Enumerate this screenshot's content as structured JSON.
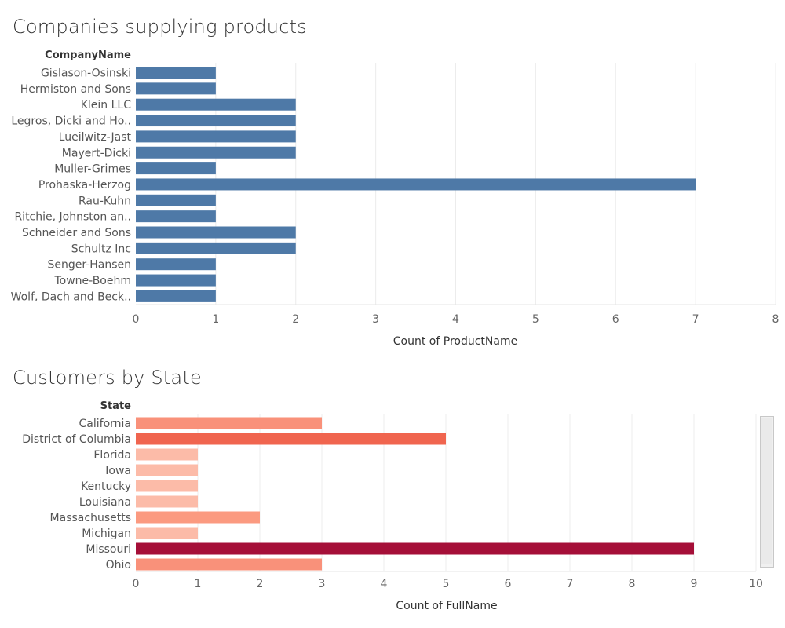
{
  "chart_data": [
    {
      "type": "bar",
      "orientation": "horizontal",
      "title": "Companies supplying products",
      "category_header": "CompanyName",
      "xlabel": "Count of ProductName",
      "xlim": [
        0,
        8
      ],
      "xticks": [
        0,
        1,
        2,
        3,
        4,
        5,
        6,
        7,
        8
      ],
      "categories": [
        "Gislason-Osinski",
        "Hermiston and Sons",
        "Klein LLC",
        "Legros, Dicki and Ho..",
        "Lueilwitz-Jast",
        "Mayert-Dicki",
        "Muller-Grimes",
        "Prohaska-Herzog",
        "Rau-Kuhn",
        "Ritchie, Johnston an..",
        "Schneider and Sons",
        "Schultz Inc",
        "Senger-Hansen",
        "Towne-Boehm",
        "Wolf, Dach and Beck.."
      ],
      "values": [
        1,
        1,
        2,
        2,
        2,
        2,
        1,
        7,
        1,
        1,
        2,
        2,
        1,
        1,
        1
      ],
      "bar_color": "#4e79a7",
      "grid": "vertical"
    },
    {
      "type": "bar",
      "orientation": "horizontal",
      "title": "Customers by State",
      "category_header": "State",
      "xlabel": "Count of FullName",
      "xlim": [
        0,
        10
      ],
      "xticks": [
        0,
        1,
        2,
        3,
        4,
        5,
        6,
        7,
        8,
        9,
        10
      ],
      "categories": [
        "California",
        "District of Columbia",
        "Florida",
        "Iowa",
        "Kentucky",
        "Louisiana",
        "Massachusetts",
        "Michigan",
        "Missouri",
        "Ohio"
      ],
      "values": [
        3,
        5,
        1,
        1,
        1,
        1,
        2,
        1,
        9,
        3
      ],
      "color_scale": {
        "1": "#fcbba8",
        "2": "#fb9a80",
        "3": "#f9917a",
        "5": "#f0654f",
        "9": "#a50f38"
      },
      "grid": "vertical"
    }
  ]
}
